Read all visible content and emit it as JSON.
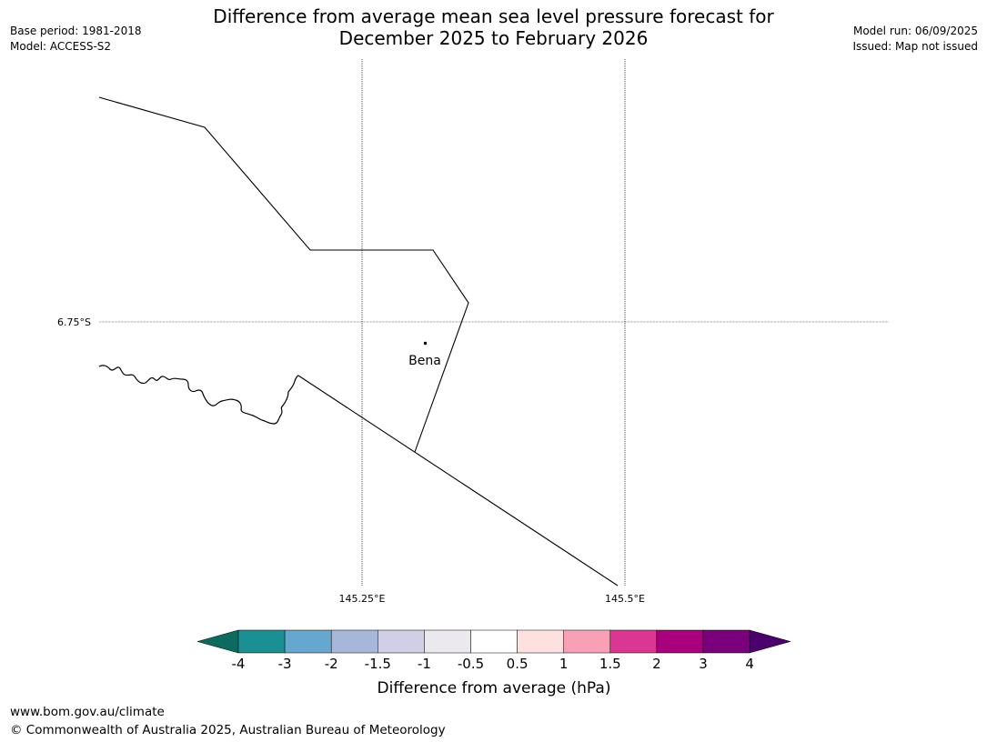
{
  "title_line1": "Difference from average mean sea level pressure forecast for",
  "title_line2": "December 2025 to February 2026",
  "meta_left": {
    "base_period": "Base period: 1981-2018",
    "model": "Model: ACCESS-S2"
  },
  "meta_right": {
    "model_run": "Model run: 06/09/2025",
    "issued": "Issued: Map not issued"
  },
  "map": {
    "lat_labels": [
      "6.75°S"
    ],
    "lon_labels": [
      "145.25°E",
      "145.5°E"
    ],
    "place": "Bena"
  },
  "colorbar": {
    "label": "Difference from average (hPa)",
    "tick_labels": [
      "-4",
      "-3",
      "-2",
      "-1.5",
      "-1",
      "-0.5",
      "0.5",
      "1",
      "1.5",
      "2",
      "3",
      "4"
    ],
    "colors": [
      "#1a8f94",
      "#66a7d0",
      "#a6b8da",
      "#d1cfe6",
      "#ebe8ee",
      "#ffffff",
      "#fde0e0",
      "#f8a0b6",
      "#dc3693",
      "#aa007d",
      "#7b007b"
    ],
    "under_color": "#0b6b5e",
    "over_color": "#4b006e"
  },
  "footer": {
    "url": "www.bom.gov.au/climate",
    "copyright": "© Commonwealth of Australia 2025, Australian Bureau of Meteorology"
  }
}
